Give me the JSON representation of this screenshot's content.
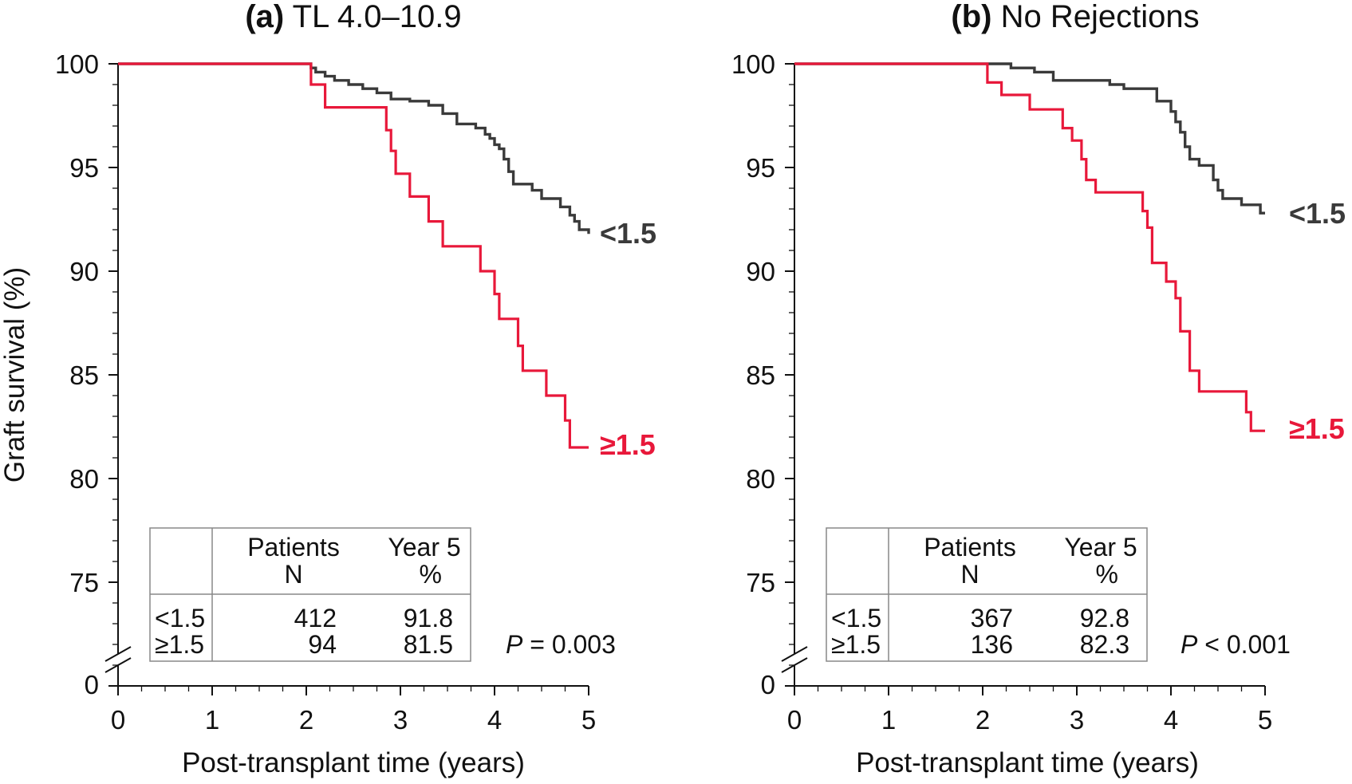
{
  "chart_data": [
    {
      "type": "line",
      "step": true,
      "panel_tag": "(a)",
      "title": "TL 4.0–10.9",
      "xlabel": "Post-transplant time (years)",
      "ylabel": "Graft survival (%)",
      "xlim": [
        0,
        5
      ],
      "ylim": [
        70,
        100
      ],
      "y_axis_break": true,
      "y_break_label": "0",
      "xticks": [
        "0",
        "1",
        "2",
        "3",
        "4",
        "5"
      ],
      "yticks": [
        "75",
        "80",
        "85",
        "90",
        "95",
        "100"
      ],
      "grid": false,
      "series": [
        {
          "name": "<1.5",
          "color": "#3a3a3a",
          "x": [
            0,
            2.05,
            2.1,
            2.2,
            2.3,
            2.45,
            2.6,
            2.75,
            2.9,
            3.0,
            3.1,
            3.3,
            3.45,
            3.6,
            3.75,
            3.8,
            3.9,
            3.95,
            4.0,
            4.05,
            4.1,
            4.15,
            4.2,
            4.25,
            4.4,
            4.5,
            4.6,
            4.7,
            4.8,
            4.85,
            4.9,
            5.0
          ],
          "y": [
            100,
            99.8,
            99.6,
            99.4,
            99.2,
            99.0,
            98.8,
            98.6,
            98.3,
            98.3,
            98.2,
            98.0,
            97.6,
            97.1,
            97.1,
            96.9,
            96.6,
            96.4,
            96.1,
            95.9,
            95.4,
            94.8,
            94.2,
            94.2,
            93.9,
            93.5,
            93.5,
            93.1,
            92.7,
            92.4,
            92.0,
            91.8
          ]
        },
        {
          "name": "≥1.5",
          "color": "#e8183a",
          "x": [
            0,
            2.05,
            2.2,
            2.85,
            2.9,
            2.95,
            3.1,
            3.3,
            3.45,
            3.85,
            4.0,
            4.05,
            4.25,
            4.3,
            4.55,
            4.75,
            4.8,
            5.0
          ],
          "y": [
            100,
            99.0,
            97.9,
            96.8,
            95.8,
            94.7,
            93.6,
            92.4,
            91.2,
            90.0,
            88.9,
            87.7,
            86.4,
            85.2,
            84.0,
            82.8,
            81.5,
            81.5
          ]
        }
      ],
      "curve_labels": [
        "<1.5",
        "≥1.5"
      ],
      "table": {
        "headers": [
          [
            "Patients",
            "N"
          ],
          [
            "Year 5",
            "%"
          ]
        ],
        "rows": [
          {
            "group": "<1.5",
            "patients": "412",
            "year5": "91.8"
          },
          {
            "group": "≥1.5",
            "patients": "94",
            "year5": "81.5"
          }
        ]
      },
      "p_label": "P",
      "p_value": " = 0.003"
    },
    {
      "type": "line",
      "step": true,
      "panel_tag": "(b)",
      "title": "No Rejections",
      "xlabel": "Post-transplant time (years)",
      "ylabel": "",
      "xlim": [
        0,
        5
      ],
      "ylim": [
        70,
        100
      ],
      "y_axis_break": true,
      "y_break_label": "0",
      "xticks": [
        "0",
        "1",
        "2",
        "3",
        "4",
        "5"
      ],
      "yticks": [
        "75",
        "80",
        "85",
        "90",
        "95",
        "100"
      ],
      "grid": false,
      "series": [
        {
          "name": "<1.5",
          "color": "#3a3a3a",
          "x": [
            0,
            2.3,
            2.55,
            2.75,
            3.35,
            3.5,
            3.85,
            4.0,
            4.05,
            4.1,
            4.15,
            4.2,
            4.3,
            4.45,
            4.5,
            4.55,
            4.75,
            4.95,
            5.0
          ],
          "y": [
            100,
            99.8,
            99.6,
            99.2,
            99.0,
            98.8,
            98.2,
            97.7,
            97.2,
            96.7,
            96.0,
            95.4,
            95.1,
            94.4,
            93.9,
            93.5,
            93.2,
            92.8,
            92.8
          ]
        },
        {
          "name": "≥1.5",
          "color": "#e8183a",
          "x": [
            0,
            2.05,
            2.2,
            2.5,
            2.85,
            2.95,
            3.05,
            3.1,
            3.2,
            3.7,
            3.75,
            3.8,
            3.95,
            4.05,
            4.1,
            4.2,
            4.3,
            4.8,
            4.85,
            5.0
          ],
          "y": [
            100,
            99.1,
            98.5,
            97.8,
            96.9,
            96.3,
            95.4,
            94.4,
            93.8,
            92.9,
            92.1,
            90.4,
            89.5,
            88.7,
            87.1,
            85.2,
            84.2,
            83.2,
            82.3,
            82.3
          ]
        }
      ],
      "curve_labels": [
        "<1.5",
        "≥1.5"
      ],
      "table": {
        "headers": [
          [
            "Patients",
            "N"
          ],
          [
            "Year 5",
            "%"
          ]
        ],
        "rows": [
          {
            "group": "<1.5",
            "patients": "367",
            "year5": "92.8"
          },
          {
            "group": "≥1.5",
            "patients": "136",
            "year5": "82.3"
          }
        ]
      },
      "p_label": "P",
      "p_value": " < 0.001"
    }
  ]
}
